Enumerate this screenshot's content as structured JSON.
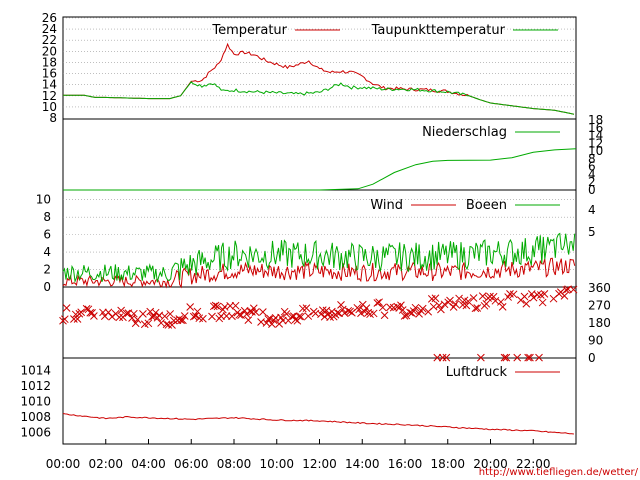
{
  "footer": {
    "url": "http://www.tiefliegen.de/wetter/"
  },
  "colors": {
    "red": "#cc0000",
    "green": "#00aa00",
    "grid": "#999999"
  },
  "chart_data": [
    {
      "panel": "temperature",
      "type": "line",
      "ylim": [
        8,
        26
      ],
      "yticks": [
        "8",
        "10",
        "12",
        "14",
        "16",
        "18",
        "20",
        "22",
        "24",
        "26"
      ],
      "grid": true,
      "legend_position": "top",
      "series": [
        {
          "name": "Temperatur",
          "color": "#cc0000",
          "points": [
            [
              0,
              12.1
            ],
            [
              1,
              12.1
            ],
            [
              1.5,
              11.7
            ],
            [
              2,
              11.7
            ],
            [
              3,
              11.6
            ],
            [
              4,
              11.5
            ],
            [
              5,
              11.5
            ],
            [
              5.5,
              12
            ],
            [
              6,
              14.6
            ],
            [
              6.5,
              14.8
            ],
            [
              7,
              16.8
            ],
            [
              7.3,
              17.8
            ],
            [
              7.7,
              21.2
            ],
            [
              8,
              19.5
            ],
            [
              8.5,
              19.8
            ],
            [
              9,
              19.3
            ],
            [
              9.5,
              18.3
            ],
            [
              10,
              17.7
            ],
            [
              10.5,
              17.1
            ],
            [
              11,
              17.6
            ],
            [
              11.5,
              18.3
            ],
            [
              12,
              16.8
            ],
            [
              12.5,
              16.2
            ],
            [
              13,
              16.4
            ],
            [
              13.5,
              16.2
            ],
            [
              14,
              15.5
            ],
            [
              14.5,
              14.2
            ],
            [
              15,
              13.4
            ],
            [
              16,
              13.2
            ],
            [
              17,
              13.1
            ],
            [
              18,
              12.8
            ],
            [
              19,
              12
            ],
            [
              19.5,
              11.3
            ],
            [
              20,
              10.7
            ],
            [
              21,
              10.2
            ],
            [
              22,
              9.7
            ],
            [
              23,
              9.4
            ],
            [
              24,
              8.6
            ]
          ]
        },
        {
          "name": "Taupunkttemperatur",
          "color": "#00aa00",
          "points": [
            [
              0,
              12.1
            ],
            [
              1,
              12.1
            ],
            [
              1.5,
              11.7
            ],
            [
              2,
              11.7
            ],
            [
              3,
              11.6
            ],
            [
              4,
              11.5
            ],
            [
              5,
              11.5
            ],
            [
              5.5,
              12
            ],
            [
              6,
              14.5
            ],
            [
              6.5,
              13.8
            ],
            [
              7,
              14.3
            ],
            [
              7.5,
              12.8
            ],
            [
              8,
              13
            ],
            [
              9,
              12.7
            ],
            [
              10,
              12.5
            ],
            [
              11,
              12.3
            ],
            [
              12,
              12.6
            ],
            [
              13,
              14.2
            ],
            [
              13.5,
              13.5
            ],
            [
              14,
              13.5
            ],
            [
              15,
              13.2
            ],
            [
              16,
              13.2
            ],
            [
              17,
              13
            ],
            [
              18,
              12.7
            ],
            [
              19,
              12
            ],
            [
              19.5,
              11.3
            ],
            [
              20,
              10.7
            ],
            [
              21,
              10.2
            ],
            [
              22,
              9.7
            ],
            [
              23,
              9.4
            ],
            [
              24,
              8.6
            ]
          ]
        }
      ]
    },
    {
      "panel": "precipitation",
      "type": "line",
      "ylim": [
        0,
        18
      ],
      "yticks": [
        "0",
        "2",
        "4",
        "6",
        "8",
        "10",
        "12",
        "14",
        "16",
        "18"
      ],
      "legend_position": "top",
      "series": [
        {
          "name": "Niederschlag",
          "color": "#00aa00",
          "points": [
            [
              0,
              0
            ],
            [
              12,
              0
            ],
            [
              13.8,
              0.3
            ],
            [
              14.5,
              1.5
            ],
            [
              15.5,
              4.5
            ],
            [
              16.5,
              6.5
            ],
            [
              17.3,
              7.4
            ],
            [
              18,
              7.6
            ],
            [
              20,
              7.7
            ],
            [
              21,
              8.3
            ],
            [
              22,
              9.7
            ],
            [
              23,
              10.3
            ],
            [
              24,
              10.6
            ]
          ]
        }
      ]
    },
    {
      "panel": "wind",
      "type": "line",
      "ylim": [
        0,
        11
      ],
      "yticks": [
        "0",
        "2",
        "4",
        "6",
        "8",
        "10"
      ],
      "y2ticks": [
        "4",
        "5"
      ],
      "grid": true,
      "legend_position": "top",
      "series": [
        {
          "name": "Wind",
          "color": "#cc0000",
          "baseline": [
            [
              0,
              0.6
            ],
            [
              5,
              0.6
            ],
            [
              6,
              1.2
            ],
            [
              8,
              1.8
            ],
            [
              12,
              1.7
            ],
            [
              14,
              1.6
            ],
            [
              16,
              1.7
            ],
            [
              18,
              1.6
            ],
            [
              20,
              1.8
            ],
            [
              22,
              2
            ],
            [
              24,
              2.4
            ]
          ]
        },
        {
          "name": "Boeen",
          "color": "#00aa00",
          "baseline": [
            [
              0,
              1.6
            ],
            [
              5,
              1.4
            ],
            [
              6,
              2.4
            ],
            [
              8,
              3.6
            ],
            [
              12,
              3.5
            ],
            [
              14,
              3.2
            ],
            [
              16,
              3.3
            ],
            [
              18,
              3.4
            ],
            [
              20,
              3.7
            ],
            [
              22,
              4
            ],
            [
              24,
              4.8
            ]
          ]
        }
      ]
    },
    {
      "panel": "wind_direction",
      "type": "scatter",
      "ylim": [
        0,
        360
      ],
      "yticks": [
        "0",
        "90",
        "180",
        "270",
        "360"
      ],
      "markers": "x",
      "series": [
        {
          "color": "#cc0000",
          "baseline": [
            [
              0,
              225
            ],
            [
              5,
              200
            ],
            [
              6,
              230
            ],
            [
              8,
              240
            ],
            [
              10,
              205
            ],
            [
              12,
              230
            ],
            [
              14,
              255
            ],
            [
              16,
              250
            ],
            [
              18,
              285
            ],
            [
              20,
              290
            ],
            [
              22,
              310
            ],
            [
              24,
              330
            ]
          ]
        }
      ]
    },
    {
      "panel": "pressure",
      "type": "line",
      "ylim": [
        1004.5,
        1015.5
      ],
      "yticks": [
        "1006",
        "1008",
        "1010",
        "1012",
        "1014"
      ],
      "legend_position": "top",
      "series": [
        {
          "name": "Luftdruck",
          "color": "#cc0000",
          "points": [
            [
              0,
              1008.4
            ],
            [
              1,
              1008.1
            ],
            [
              2,
              1007.8
            ],
            [
              3,
              1008
            ],
            [
              4,
              1007.9
            ],
            [
              6,
              1007.7
            ],
            [
              8,
              1007.9
            ],
            [
              10,
              1007.6
            ],
            [
              12,
              1007.5
            ],
            [
              14,
              1007.2
            ],
            [
              16,
              1007
            ],
            [
              18,
              1006.7
            ],
            [
              20,
              1006.4
            ],
            [
              22,
              1006.2
            ],
            [
              24,
              1005.8
            ]
          ]
        }
      ]
    }
  ],
  "x_axis": {
    "range": [
      0,
      24
    ],
    "ticks": [
      "00:00",
      "02:00",
      "04:00",
      "06:00",
      "08:00",
      "10:00",
      "12:00",
      "14:00",
      "16:00",
      "18:00",
      "20:00",
      "22:00"
    ]
  }
}
